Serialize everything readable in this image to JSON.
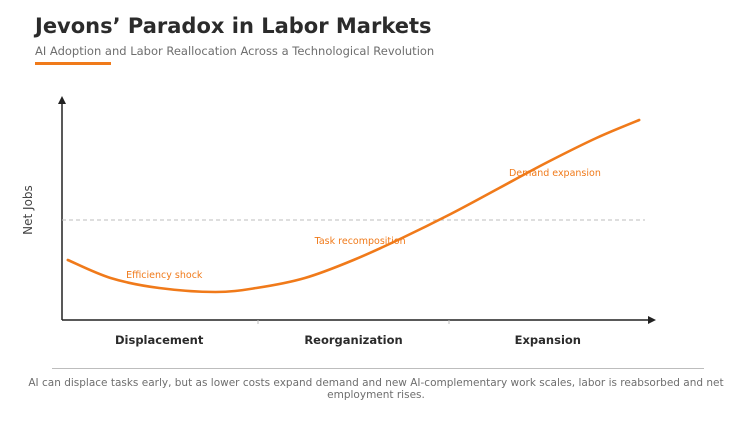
{
  "header": {
    "title": "Jevons’ Paradox in Labor Markets",
    "subtitle": "AI Adoption and Labor Reallocation Across a Technological Revolution"
  },
  "caption": "AI can displace tasks early, but as lower costs expand demand and new AI-complementary work scales, labor is reabsorbed and net employment rises.",
  "colors": {
    "accent": "#f07a1a",
    "axis": "#222222",
    "baseline": "#bdbdbd",
    "text_dark": "#2b2b2b",
    "text_muted": "#6e6e6e"
  },
  "chart_data": {
    "type": "line",
    "title": "",
    "xlabel": "",
    "ylabel": "Net Jobs",
    "xlim": [
      0,
      3
    ],
    "ylim": [
      0,
      10
    ],
    "categories": [
      "Displacement",
      "Reorganization",
      "Expansion"
    ],
    "reference_line": {
      "y": 5,
      "style": "dashed"
    },
    "grid": false,
    "series": [
      {
        "x": [
          0.03,
          0.25,
          0.5,
          0.79,
          1.0,
          1.25,
          1.5,
          1.75,
          2.0,
          2.25,
          2.5,
          2.75,
          2.97
        ],
        "y": [
          3.0,
          2.1,
          1.6,
          1.4,
          1.6,
          2.1,
          3.0,
          4.1,
          5.3,
          6.6,
          7.9,
          9.1,
          10.0
        ]
      }
    ],
    "annotations": [
      {
        "text": "Efficiency shock",
        "x": 0.33,
        "y": 2.1
      },
      {
        "text": "Task recomposition",
        "x": 1.3,
        "y": 3.8
      },
      {
        "text": "Demand expansion",
        "x": 2.3,
        "y": 7.2
      }
    ]
  }
}
